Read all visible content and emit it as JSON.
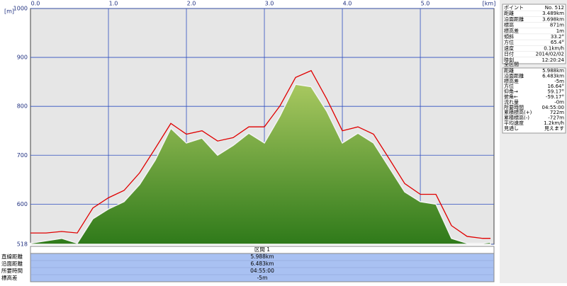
{
  "chart_data": {
    "type": "line",
    "x_label": "[km]",
    "y_label": "[m]",
    "x": [
      0.0,
      0.2,
      0.4,
      0.6,
      0.8,
      1.0,
      1.2,
      1.4,
      1.6,
      1.8,
      2.0,
      2.2,
      2.4,
      2.6,
      2.8,
      3.0,
      3.2,
      3.4,
      3.6,
      3.8,
      4.0,
      4.2,
      4.4,
      4.6,
      4.8,
      5.0,
      5.2,
      5.4,
      5.6,
      5.8,
      5.9
    ],
    "series": [
      {
        "color": "#7aa83a",
        "fill": true,
        "values": [
          520,
          525,
          530,
          520,
          570,
          590,
          605,
          640,
          690,
          755,
          725,
          735,
          700,
          720,
          745,
          725,
          780,
          845,
          840,
          790,
          725,
          745,
          725,
          675,
          625,
          605,
          600,
          530,
          520,
          520,
          522
        ]
      },
      {
        "color": "#e00000",
        "fill": false,
        "values": [
          541,
          541,
          544,
          541,
          592,
          613,
          628,
          664,
          714,
          765,
          743,
          750,
          729,
          736,
          758,
          758,
          801,
          859,
          873,
          815,
          750,
          758,
          743,
          693,
          642,
          620,
          620,
          556,
          534,
          530,
          530
        ]
      }
    ],
    "xlim": [
      0,
      5.945
    ],
    "ylim": [
      518,
      1000
    ],
    "xticks": [
      {
        "value": 0,
        "label": "0.0"
      },
      {
        "value": 1,
        "label": "1.0"
      },
      {
        "value": 2,
        "label": "2.0"
      },
      {
        "value": 3,
        "label": "3.0"
      },
      {
        "value": 4,
        "label": "4.0"
      },
      {
        "value": 5,
        "label": "5.0"
      }
    ],
    "yticks": [
      518,
      600,
      700,
      800,
      900,
      1000
    ],
    "grid": true
  },
  "info": {
    "point": {
      "rows": [
        [
          "ポイント",
          "No. 512"
        ],
        [
          "距離",
          "3.489km"
        ],
        [
          "沿面距離",
          "3.698km"
        ],
        [
          "標高",
          "871m"
        ],
        [
          "標高差",
          "1m"
        ],
        [
          "傾斜",
          "33.2°"
        ],
        [
          "方位",
          "65.4°"
        ],
        [
          "速度",
          "0.1km/h"
        ],
        [
          "日付",
          "2014/02/02"
        ],
        [
          "時刻",
          "12:20:24"
        ]
      ]
    },
    "total": {
      "header": "全区間",
      "rows": [
        [
          "距離",
          "5.988km"
        ],
        [
          "沿面距離",
          "6.483km"
        ],
        [
          "標高差",
          "-5m"
        ],
        [
          "方位",
          "16.64°"
        ],
        [
          "仰角→",
          "59.17°"
        ],
        [
          "俯角←",
          "-59.17°"
        ],
        [
          "流れ量",
          "-0m"
        ],
        [
          "所要時間",
          "04:55:00"
        ],
        [
          "累積標高(+)",
          "722m"
        ],
        [
          "累積標高(-)",
          "-727m"
        ],
        [
          "平均速度",
          "1.2km/h"
        ],
        [
          "見通し",
          "見えます"
        ]
      ]
    }
  },
  "segment_table": {
    "title": "区間 1",
    "rows": [
      [
        "直線距離",
        "5.988km"
      ],
      [
        "沿面距離",
        "6.483km"
      ],
      [
        "所要時間",
        "04:55:00"
      ],
      [
        "標高差",
        "-5m"
      ]
    ]
  }
}
